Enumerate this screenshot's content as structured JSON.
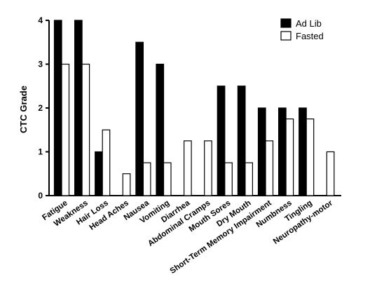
{
  "chart_data": {
    "type": "bar",
    "ylabel": "CTC Grade",
    "ylim": [
      0,
      4
    ],
    "yticks": [
      0,
      1,
      2,
      3,
      4
    ],
    "grid": false,
    "legend_position": "top-right",
    "categories": [
      "Fatigue",
      "Weakness",
      "Hair Loss",
      "Head Aches",
      "Nausea",
      "Vomiting",
      "Diarrhea",
      "Abdominal Cramps",
      "Mouth Sores",
      "Dry Mouth",
      "Short-Term Memory Impairment",
      "Numbness",
      "Tingling",
      "Neuropathy-motor"
    ],
    "series": [
      {
        "name": "Ad Lib",
        "color": "#000000",
        "values": [
          4,
          4,
          1,
          0,
          3.5,
          3,
          0,
          0,
          2.5,
          2.5,
          2,
          2,
          2,
          0
        ]
      },
      {
        "name": "Fasted",
        "color": "#ffffff",
        "values": [
          3,
          3,
          1.5,
          0.5,
          0.75,
          0.75,
          1.25,
          1.25,
          0.75,
          0.75,
          1.25,
          1.75,
          1.75,
          1
        ]
      }
    ]
  }
}
